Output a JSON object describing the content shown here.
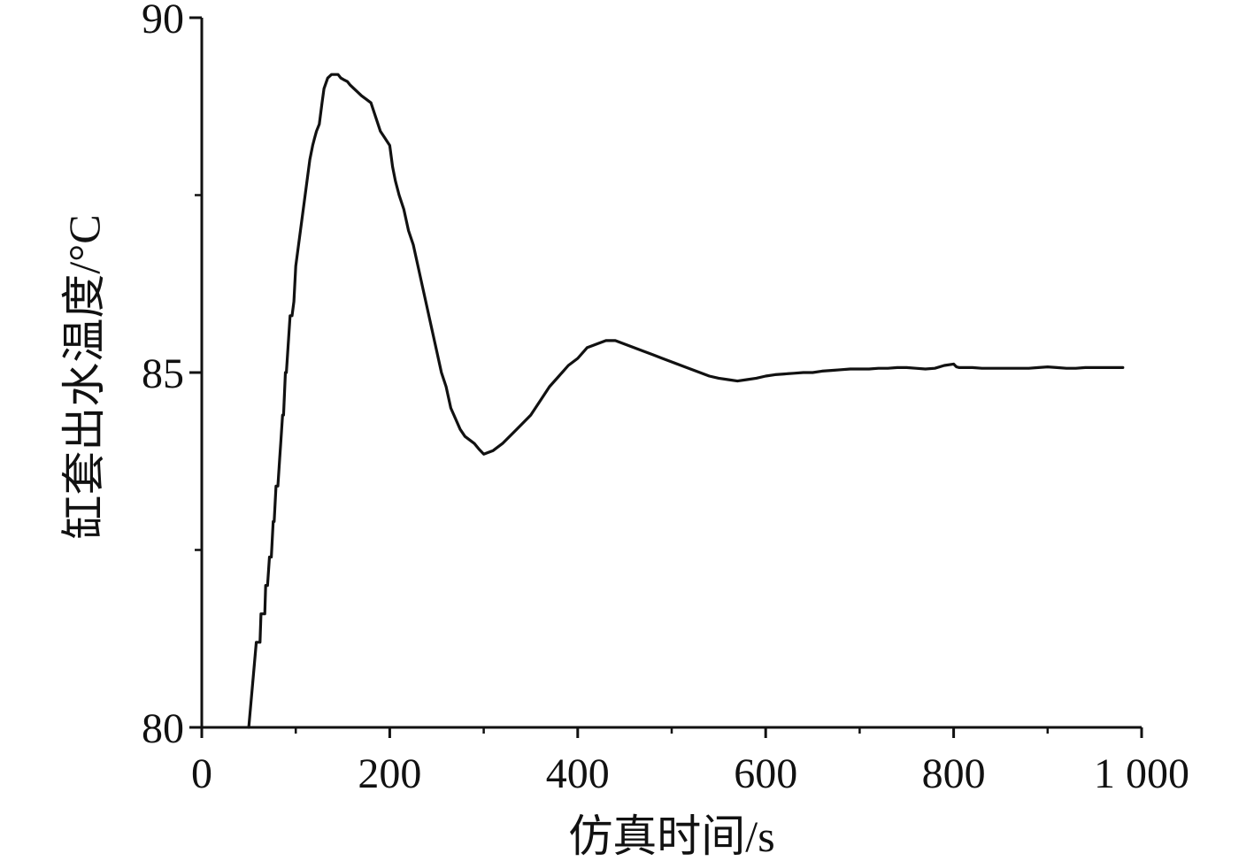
{
  "chart_data": {
    "type": "line",
    "title": "",
    "xlabel": "仿真时间/s",
    "ylabel": "缸套出水温度/°C",
    "xlim": [
      0,
      1000
    ],
    "ylim": [
      80,
      90
    ],
    "x_ticks": [
      0,
      200,
      400,
      600,
      800,
      1000
    ],
    "x_tick_labels": [
      "0",
      "200",
      "400",
      "600",
      "800",
      "1 000"
    ],
    "x_minor_ticks": [
      100,
      300,
      500,
      700,
      900
    ],
    "y_ticks": [
      80,
      85,
      90
    ],
    "y_tick_labels": [
      "80",
      "85",
      "90"
    ],
    "y_minor_ticks": [
      82.5,
      87.5
    ],
    "grid": false,
    "line_color": "#111111",
    "series": [
      {
        "x": [
          50,
          56,
          58,
          62,
          63,
          67,
          68,
          70,
          72,
          74,
          76,
          77,
          79,
          81,
          83,
          84,
          86,
          87,
          89,
          90,
          92,
          94,
          96,
          98,
          100,
          105,
          110,
          115,
          118,
          120,
          122,
          125,
          128,
          130,
          134,
          138,
          140,
          143,
          145,
          148,
          152,
          155,
          158,
          162,
          166,
          170,
          175,
          180,
          185,
          190,
          195,
          200,
          203,
          206,
          210,
          215,
          220,
          225,
          230,
          235,
          240,
          245,
          250,
          255,
          260,
          265,
          270,
          275,
          280,
          285,
          290,
          295,
          300,
          310,
          320,
          335,
          350,
          360,
          370,
          380,
          390,
          400,
          410,
          420,
          430,
          440,
          450,
          460,
          470,
          480,
          490,
          500,
          510,
          520,
          530,
          540,
          550,
          560,
          570,
          580,
          590,
          600,
          610,
          620,
          630,
          640,
          650,
          660,
          670,
          680,
          690,
          700,
          710,
          720,
          730,
          740,
          750,
          760,
          770,
          780,
          790,
          800,
          803,
          806,
          810,
          820,
          830,
          840,
          850,
          860,
          870,
          880,
          890,
          900,
          910,
          920,
          930,
          940,
          950,
          960,
          970,
          980
        ],
        "y": [
          80.0,
          80.9,
          81.2,
          81.2,
          81.6,
          81.6,
          82.0,
          82.0,
          82.4,
          82.4,
          82.9,
          82.9,
          83.4,
          83.4,
          83.8,
          84.0,
          84.4,
          84.4,
          85.0,
          85.0,
          85.4,
          85.8,
          85.8,
          86.0,
          86.5,
          87.0,
          87.5,
          88.0,
          88.2,
          88.3,
          88.4,
          88.5,
          88.8,
          89.0,
          89.15,
          89.2,
          89.2,
          89.2,
          89.2,
          89.15,
          89.12,
          89.1,
          89.05,
          89.0,
          88.95,
          88.9,
          88.85,
          88.8,
          88.6,
          88.4,
          88.3,
          88.2,
          87.9,
          87.7,
          87.5,
          87.3,
          87.0,
          86.8,
          86.5,
          86.2,
          85.9,
          85.6,
          85.3,
          85.0,
          84.8,
          84.5,
          84.35,
          84.2,
          84.1,
          84.05,
          84.0,
          83.92,
          83.85,
          83.9,
          84.0,
          84.2,
          84.4,
          84.6,
          84.8,
          84.95,
          85.1,
          85.2,
          85.35,
          85.4,
          85.45,
          85.45,
          85.4,
          85.35,
          85.3,
          85.25,
          85.2,
          85.15,
          85.1,
          85.05,
          85.0,
          84.95,
          84.92,
          84.9,
          84.88,
          84.9,
          84.92,
          84.95,
          84.97,
          84.98,
          84.99,
          85.0,
          85.0,
          85.02,
          85.03,
          85.04,
          85.05,
          85.05,
          85.05,
          85.06,
          85.06,
          85.07,
          85.07,
          85.06,
          85.05,
          85.06,
          85.1,
          85.12,
          85.08,
          85.07,
          85.07,
          85.07,
          85.06,
          85.06,
          85.06,
          85.06,
          85.06,
          85.06,
          85.07,
          85.08,
          85.07,
          85.06,
          85.06,
          85.07,
          85.07,
          85.07,
          85.07,
          85.07
        ]
      }
    ]
  }
}
